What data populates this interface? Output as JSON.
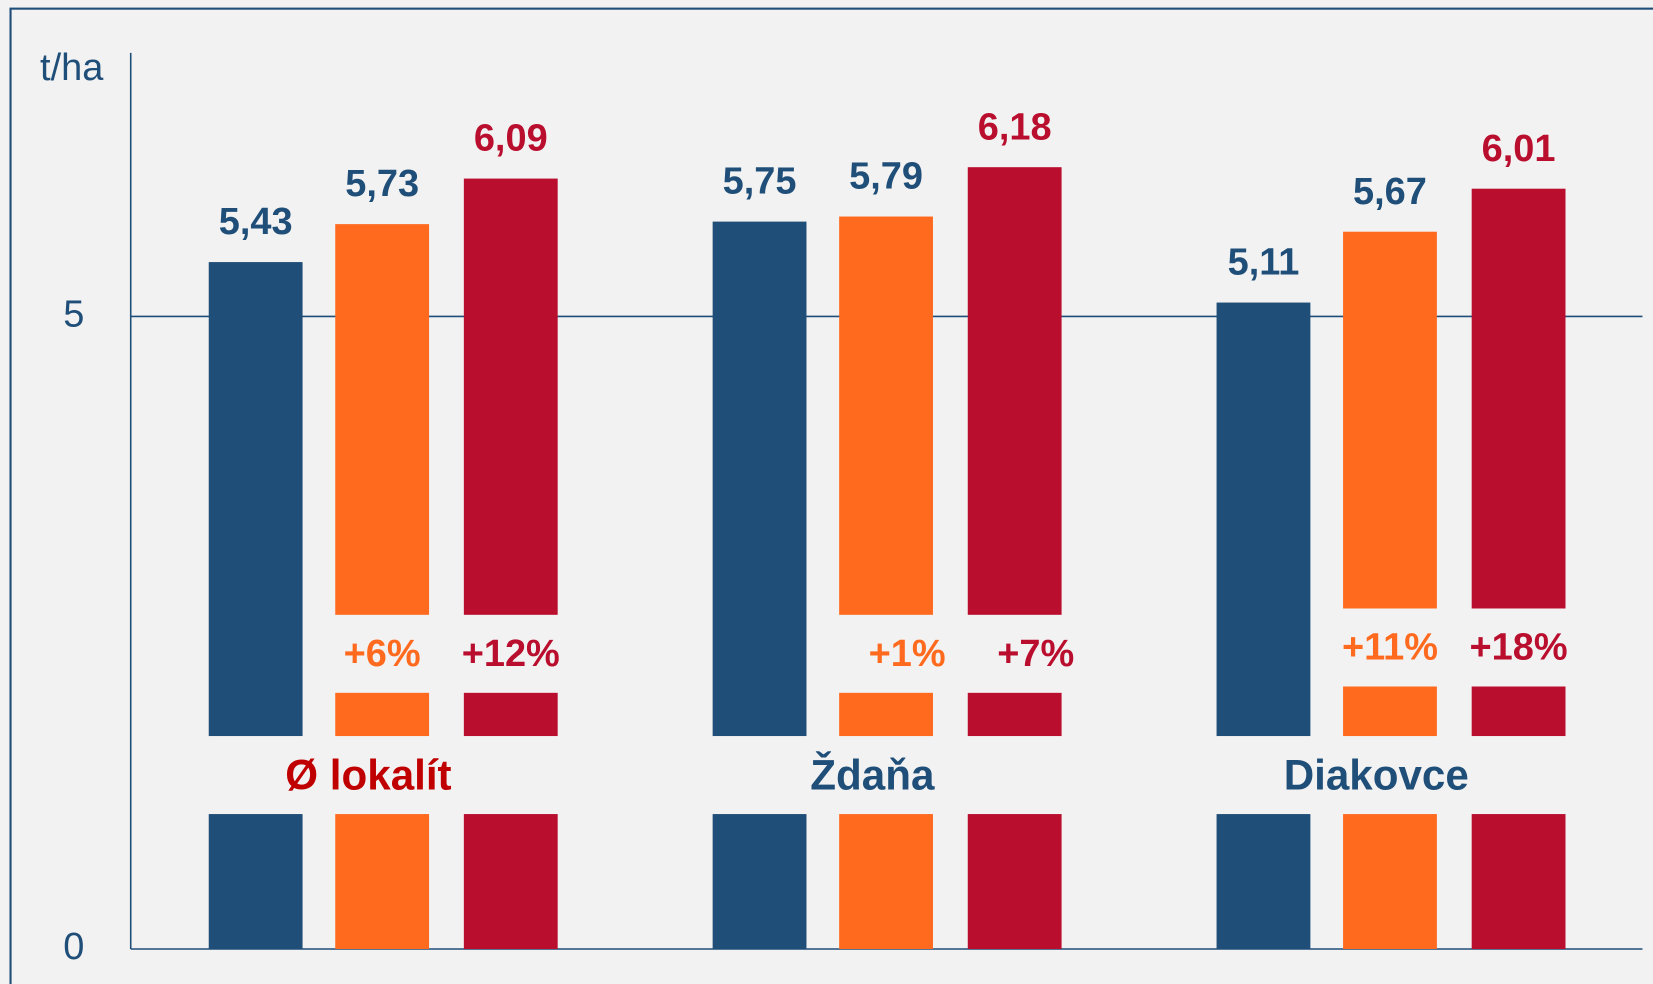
{
  "chart_data": {
    "type": "bar",
    "y_label": "t/ha",
    "categories": [
      "Ø lokalít",
      "Ždaňa",
      "Diakovce"
    ],
    "category_colors": [
      "#c00000",
      "#1f4e79",
      "#1f4e79"
    ],
    "series": [
      {
        "color": "#1f4e79",
        "values": [
          5.43,
          5.75,
          5.11
        ],
        "value_labels": [
          "5,43",
          "5,75",
          "5,11"
        ]
      },
      {
        "color": "#ff6a1f",
        "values": [
          5.73,
          5.79,
          5.67
        ],
        "value_labels": [
          "5,73",
          "5,79",
          "5,67"
        ],
        "change_labels": [
          "+6%",
          "+1%",
          "+11%"
        ]
      },
      {
        "color": "#b90e2e",
        "values": [
          6.09,
          6.18,
          6.01
        ],
        "value_labels": [
          "6,09",
          "6,18",
          "6,01"
        ],
        "change_labels": [
          "+12%",
          "+7%",
          "+18%"
        ]
      }
    ],
    "ylim": [
      0,
      7
    ],
    "yticks": [
      0,
      5
    ],
    "grid": true
  }
}
